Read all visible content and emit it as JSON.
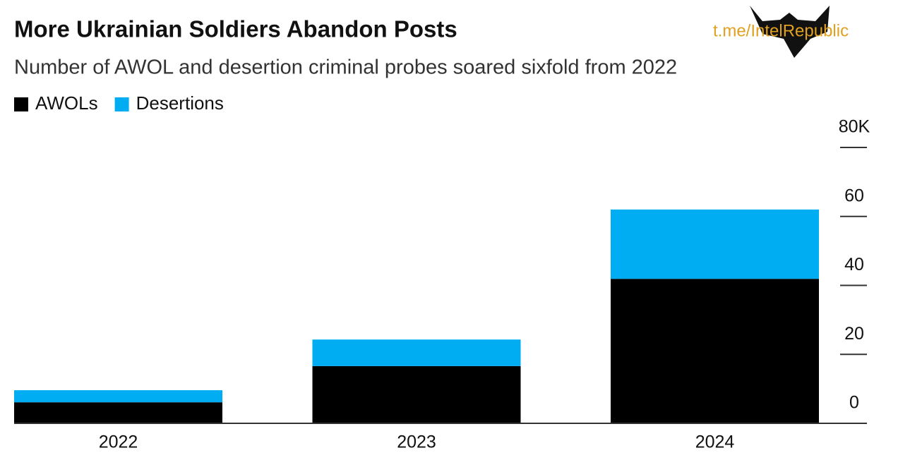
{
  "chart_data": {
    "type": "stacked_bar",
    "title": "More Ukrainian Soldiers Abandon Posts",
    "subtitle": "Number of AWOL and desertion criminal probes soared sixfold from 2022",
    "watermark": "t.me/IntelRepublic",
    "categories": [
      "2022",
      "2023",
      "2024"
    ],
    "series": [
      {
        "name": "AWOLs",
        "color": "#000000",
        "values": [
          6.1,
          16.6,
          41.9
        ]
      },
      {
        "name": "Desertions",
        "color": "#00adf2",
        "values": [
          3.5,
          7.7,
          20.1
        ]
      }
    ],
    "ylim": [
      0,
      80
    ],
    "yticks": [
      0,
      20,
      40,
      60,
      {
        "value": 80,
        "label": "80K"
      }
    ],
    "legend": "top-left"
  }
}
